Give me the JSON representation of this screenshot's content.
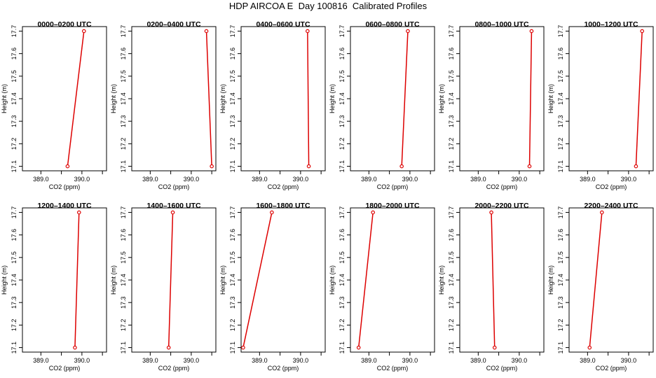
{
  "title": "HDP AIRCOA E  Day 100816  Calibrated Profiles",
  "axes": {
    "xlabel": "CO2 (ppm)",
    "ylabel": "Height (m)",
    "xticks": [
      389.0,
      389.5,
      390.0,
      390.5
    ],
    "xtick_labels": [
      "389.0",
      "",
      "390.0",
      ""
    ],
    "yticks": [
      17.1,
      17.2,
      17.3,
      17.4,
      17.5,
      17.6,
      17.7
    ],
    "ytick_labels": [
      "17.1",
      "17.2",
      "17.3",
      "17.4",
      "17.5",
      "17.6",
      "17.7"
    ],
    "xlim": [
      388.55,
      390.6
    ],
    "ylim": [
      17.08,
      17.72
    ]
  },
  "colors": {
    "series": "#dd0000",
    "frame": "#000000"
  },
  "chart_data": [
    {
      "type": "line",
      "title": "0000–0200 UTC",
      "x": [
        389.65,
        390.05
      ],
      "y": [
        17.1,
        17.7
      ]
    },
    {
      "type": "line",
      "title": "0200–0400 UTC",
      "x": [
        390.5,
        390.37
      ],
      "y": [
        17.1,
        17.7
      ]
    },
    {
      "type": "line",
      "title": "0400–0600 UTC",
      "x": [
        390.2,
        390.17
      ],
      "y": [
        17.1,
        17.7
      ]
    },
    {
      "type": "line",
      "title": "0600–0800 UTC",
      "x": [
        389.8,
        389.95
      ],
      "y": [
        17.1,
        17.7
      ]
    },
    {
      "type": "line",
      "title": "0800–1000 UTC",
      "x": [
        390.25,
        390.3
      ],
      "y": [
        17.1,
        17.7
      ]
    },
    {
      "type": "line",
      "title": "1000–1200 UTC",
      "x": [
        390.18,
        390.33
      ],
      "y": [
        17.1,
        17.7
      ]
    },
    {
      "type": "line",
      "title": "1200–1400 UTC",
      "x": [
        389.83,
        389.93
      ],
      "y": [
        17.1,
        17.7
      ]
    },
    {
      "type": "line",
      "title": "1400–1600 UTC",
      "x": [
        389.45,
        389.55
      ],
      "y": [
        17.1,
        17.7
      ]
    },
    {
      "type": "line",
      "title": "1600–1800 UTC",
      "x": [
        388.6,
        389.3
      ],
      "y": [
        17.1,
        17.7
      ]
    },
    {
      "type": "line",
      "title": "1800–2000 UTC",
      "x": [
        388.75,
        389.1
      ],
      "y": [
        17.1,
        17.7
      ]
    },
    {
      "type": "line",
      "title": "2000–2200 UTC",
      "x": [
        389.4,
        389.32
      ],
      "y": [
        17.1,
        17.7
      ]
    },
    {
      "type": "line",
      "title": "2200–2400 UTC",
      "x": [
        389.05,
        389.35
      ],
      "y": [
        17.1,
        17.7
      ]
    }
  ]
}
